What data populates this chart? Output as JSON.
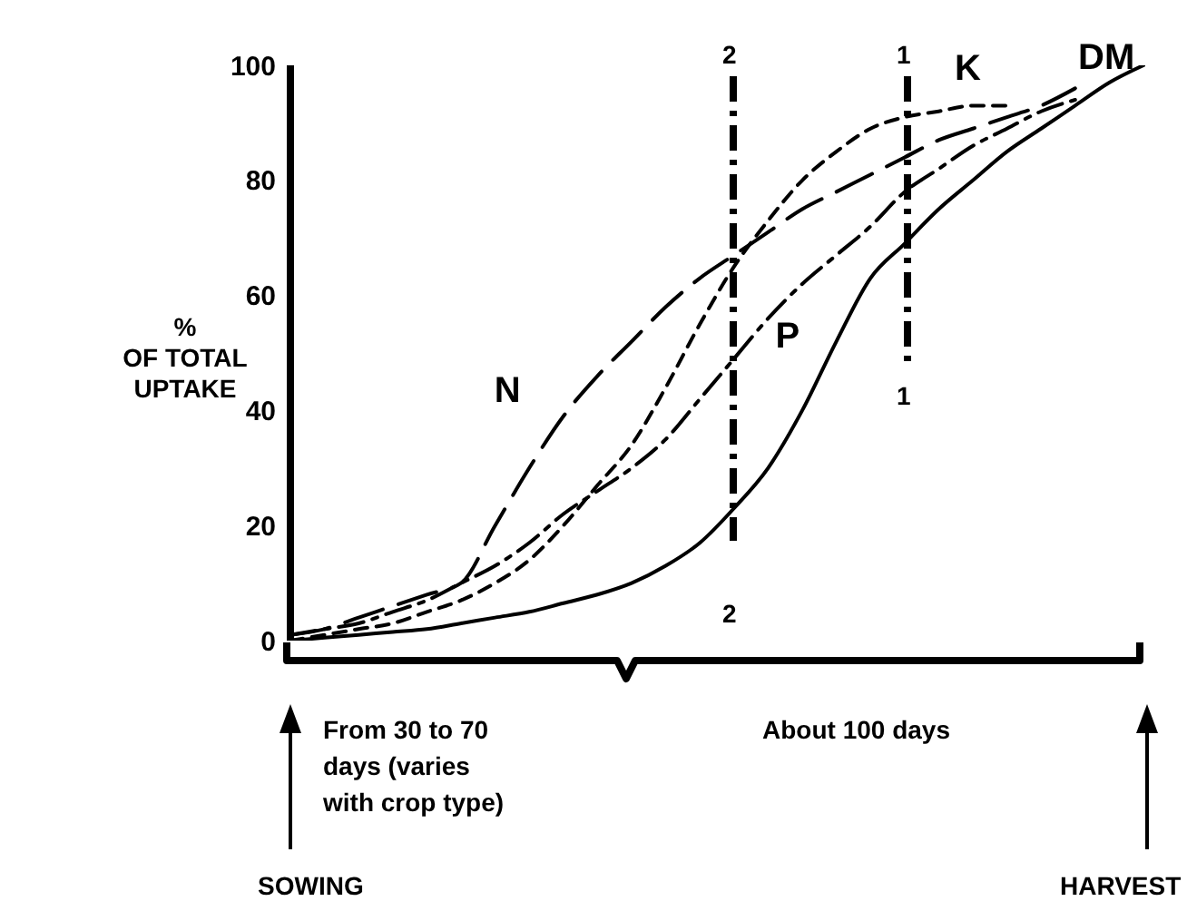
{
  "chart_data": {
    "type": "line",
    "ylabel": "%\nOF TOTAL\nUPTAKE",
    "categories": [
      null,
      null,
      null,
      null,
      null,
      null,
      null,
      null,
      null,
      null,
      null,
      null,
      null,
      null,
      null,
      null,
      null,
      null,
      null,
      null,
      null,
      null,
      null,
      null,
      null,
      null
    ],
    "series": [
      {
        "name": "N",
        "color": "#000000",
        "line_style": "dashed",
        "values": [
          1,
          2,
          4,
          6,
          8,
          10,
          20,
          30,
          39,
          46,
          52,
          58,
          63,
          67,
          71,
          75,
          78,
          81,
          84,
          87,
          89,
          91,
          93,
          96,
          null,
          null
        ]
      },
      {
        "name": "P",
        "color": "#000000",
        "line_style": "dashdot",
        "values": [
          1,
          2,
          3,
          5,
          7,
          10,
          13,
          17,
          22,
          26,
          30,
          35,
          42,
          49,
          56,
          62,
          67,
          72,
          78,
          82,
          86,
          89,
          92,
          94,
          null,
          null
        ]
      },
      {
        "name": "K",
        "color": "#000000",
        "line_style": "dotted",
        "values": [
          0,
          1,
          2,
          3,
          5,
          7,
          10,
          14,
          20,
          27,
          34,
          44,
          55,
          65,
          73,
          80,
          85,
          89,
          91,
          92,
          93,
          93,
          null,
          null,
          null,
          null
        ]
      },
      {
        "name": "DM",
        "color": "#000000",
        "line_style": "solid",
        "values": [
          0,
          0.5,
          1,
          1.5,
          2,
          3,
          4,
          5,
          6.5,
          8,
          10,
          13,
          17,
          23,
          30,
          40,
          52,
          63,
          69,
          75,
          80,
          85,
          89,
          93,
          97,
          100
        ]
      }
    ],
    "ylim": [
      0,
      100
    ],
    "yticks": [
      0,
      20,
      40,
      60,
      80,
      100
    ],
    "marker": "none",
    "annotations": [
      "From 30 to 70\ndays (varies\nwith crop type)",
      "About 100 days",
      "SOWING",
      "HARVEST",
      "2",
      "2",
      "1",
      "1"
    ]
  }
}
